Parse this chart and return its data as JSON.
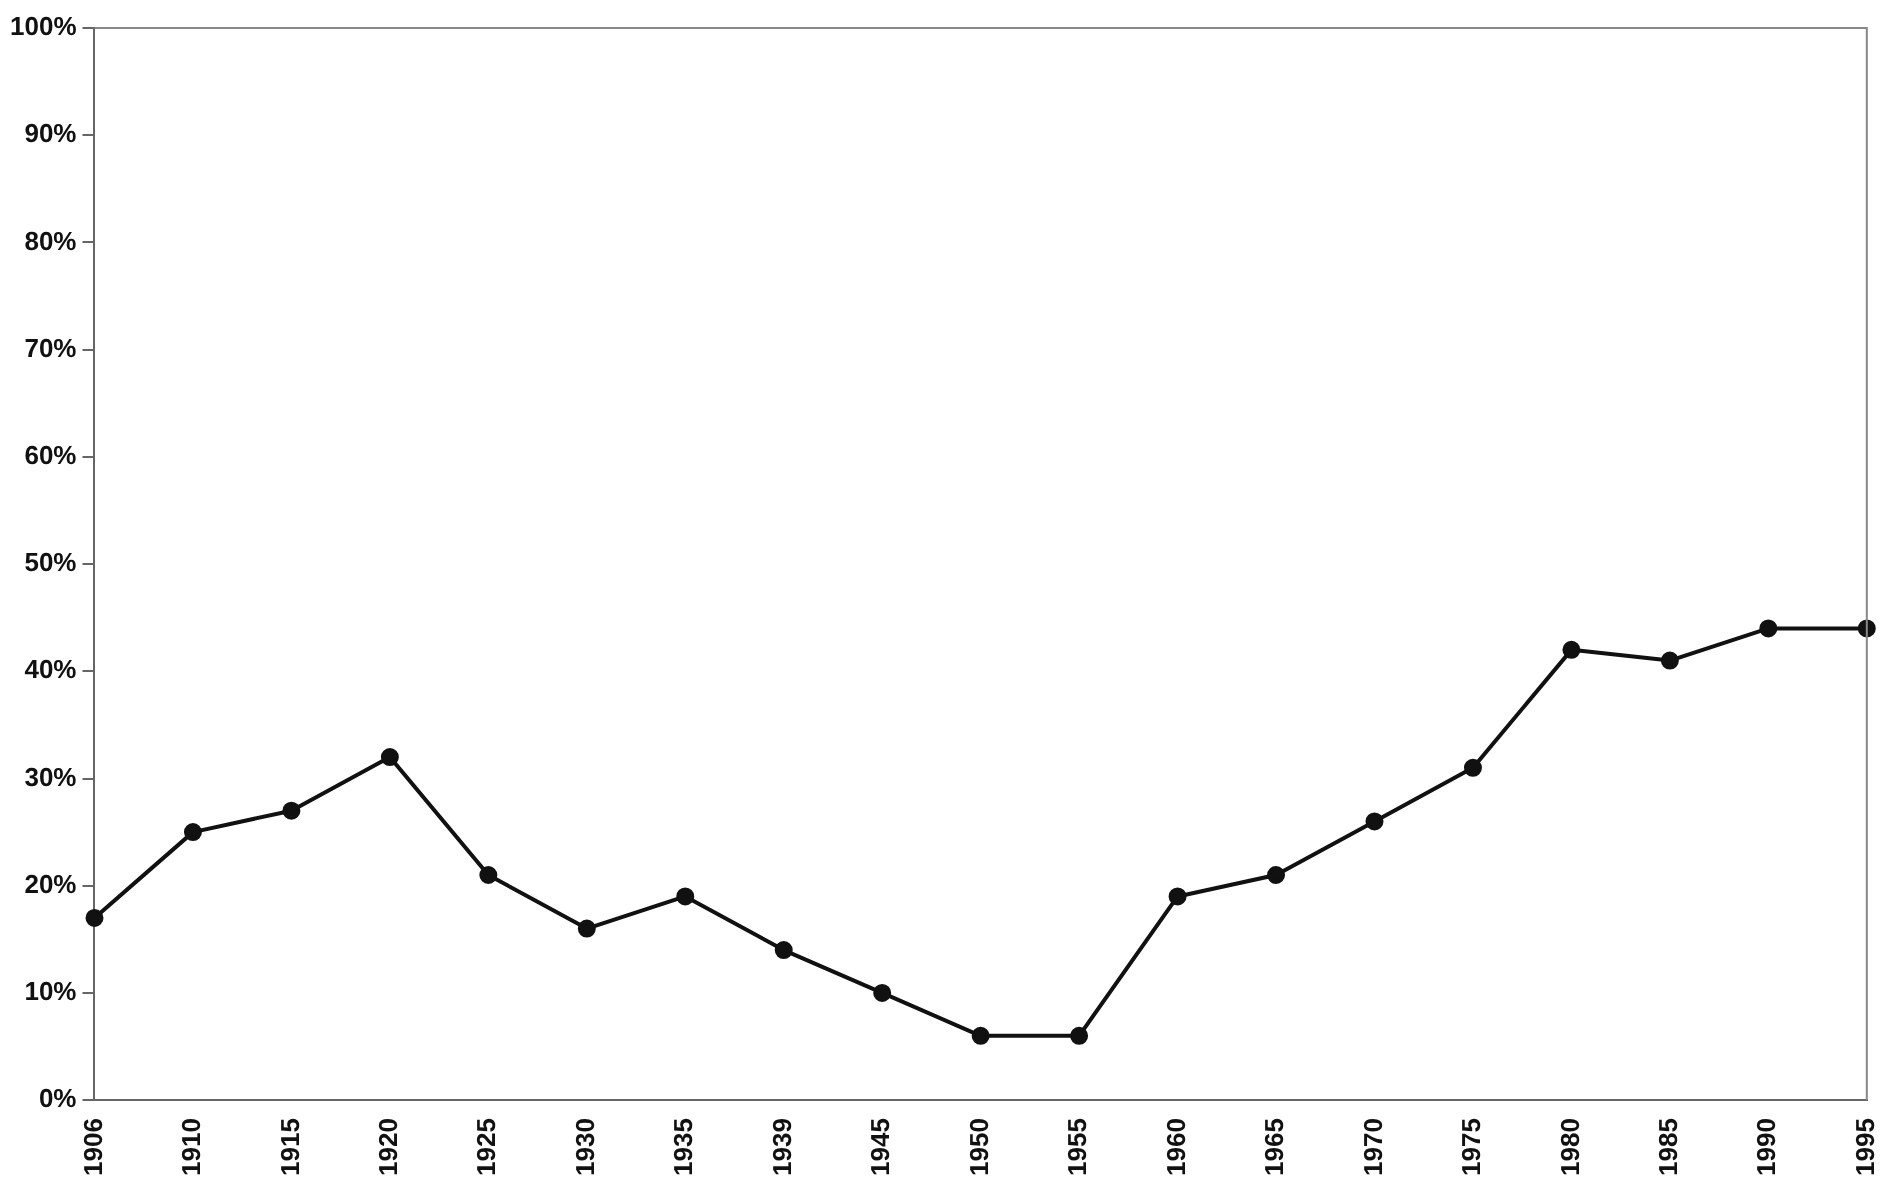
{
  "chart_data": {
    "type": "line",
    "categories": [
      "1906",
      "1910",
      "1915",
      "1920",
      "1925",
      "1930",
      "1935",
      "1939",
      "1945",
      "1950",
      "1955",
      "1960",
      "1965",
      "1970",
      "1975",
      "1980",
      "1985",
      "1990",
      "1995"
    ],
    "series": [
      {
        "color": "#111111",
        "values": [
          17,
          25,
          27,
          32,
          21,
          16,
          19,
          14,
          10,
          6,
          6,
          19,
          21,
          26,
          31,
          42,
          41,
          44,
          44
        ]
      }
    ],
    "ylim": [
      0,
      100
    ],
    "yticks": [
      {
        "value": 0,
        "label": "0%"
      },
      {
        "value": 10,
        "label": "10%"
      },
      {
        "value": 20,
        "label": "20%"
      },
      {
        "value": 30,
        "label": "30%"
      },
      {
        "value": 40,
        "label": "40%"
      },
      {
        "value": 50,
        "label": "50%"
      },
      {
        "value": 60,
        "label": "60%"
      },
      {
        "value": 70,
        "label": "70%"
      },
      {
        "value": 80,
        "label": "80%"
      },
      {
        "value": 90,
        "label": "90%"
      },
      {
        "value": 100,
        "label": "100%"
      }
    ],
    "grid": false,
    "legend": false,
    "marker": "circle",
    "line_style": "solid"
  }
}
